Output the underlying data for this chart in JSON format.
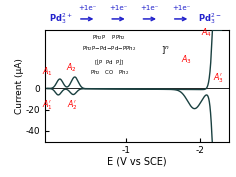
{
  "xlim": [
    0.08,
    -2.38
  ],
  "ylim": [
    -50,
    55
  ],
  "yticks": [
    -40,
    -20,
    0
  ],
  "xticks": [
    -1,
    -2
  ],
  "xlabel": "E (V vs SCE)",
  "ylabel": "Current (μA)",
  "bg_color": "#ffffff",
  "cv_color": "#1a4040",
  "ann_color": "red",
  "blue": "#2222cc",
  "ann_fs": 5.8,
  "top_fs": 6.0
}
